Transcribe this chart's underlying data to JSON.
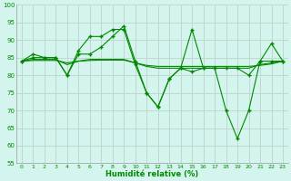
{
  "xlabel": "Humidité relative (%)",
  "xlim_min": -0.5,
  "xlim_max": 23.5,
  "ylim_min": 55,
  "ylim_max": 100,
  "yticks": [
    55,
    60,
    65,
    70,
    75,
    80,
    85,
    90,
    95,
    100
  ],
  "xticks": [
    0,
    1,
    2,
    3,
    4,
    5,
    6,
    7,
    8,
    9,
    10,
    11,
    12,
    13,
    14,
    15,
    16,
    17,
    18,
    19,
    20,
    21,
    22,
    23
  ],
  "bg_color": "#d4f5ee",
  "grid_color": "#c0d8d0",
  "line_color": "#008800",
  "series1": [
    84,
    86,
    85,
    85,
    80,
    87,
    91,
    91,
    93,
    93,
    83,
    75,
    71,
    79,
    82,
    93,
    82,
    82,
    70,
    62,
    70,
    84,
    84,
    84
  ],
  "series2": [
    84,
    85,
    85,
    85,
    80,
    86,
    86,
    88,
    91,
    94,
    84,
    75,
    71,
    79,
    82,
    81,
    82,
    82,
    82,
    82,
    80,
    84,
    89,
    84
  ],
  "series3": [
    84,
    84.5,
    84.5,
    84.5,
    83,
    84,
    84.5,
    84.5,
    84.5,
    84.5,
    83.5,
    82.5,
    82,
    82,
    82,
    82,
    82,
    82,
    82,
    82,
    82,
    83,
    83.5,
    84
  ],
  "series4": [
    84,
    84.2,
    84.2,
    84.2,
    83.5,
    84,
    84.2,
    84.3,
    84.3,
    84.3,
    83.5,
    82.8,
    82.5,
    82.5,
    82.5,
    82.5,
    82.5,
    82.5,
    82.5,
    82.5,
    82.5,
    82.8,
    83.2,
    84
  ]
}
